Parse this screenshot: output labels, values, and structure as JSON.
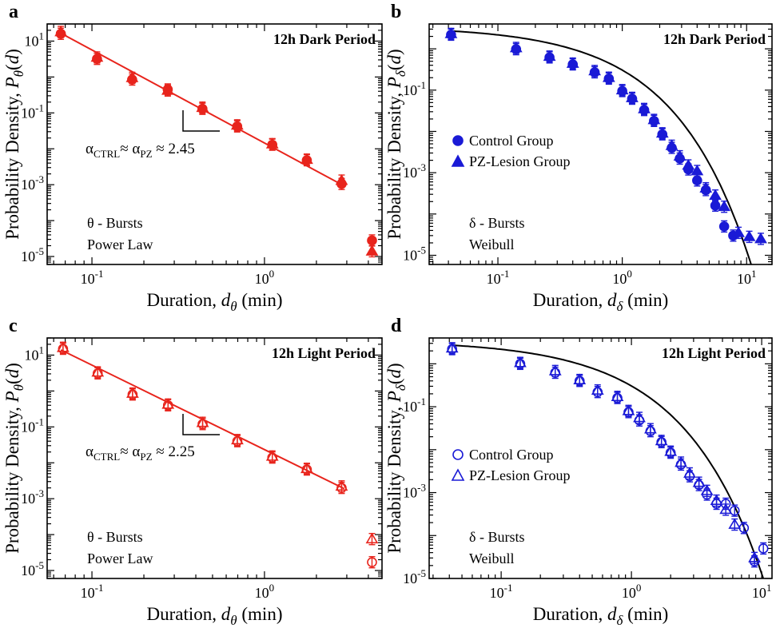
{
  "chart_data": [
    {
      "panel": "a",
      "type": "scatter",
      "title": "12h Dark Period",
      "xlabel": "Duration, dθ (min)",
      "ylabel": "Probability Density, Pθ(d)",
      "xscale": "log",
      "yscale": "log",
      "xlim": [
        0.055,
        4.8
      ],
      "ylim": [
        6e-06,
        30
      ],
      "xticks": [
        "10^-1",
        "10^0"
      ],
      "yticks": [
        "10^-5",
        "10^-3",
        "10^-1",
        "10^1"
      ],
      "color": "#e8241c",
      "filled": true,
      "series": [
        {
          "marker": "circle",
          "x": [
            0.066,
            0.107,
            0.171,
            0.275,
            0.437,
            0.695,
            1.11,
            1.76,
            2.8,
            4.2
          ],
          "y": [
            16,
            3.2,
            0.85,
            0.45,
            0.13,
            0.042,
            0.013,
            0.0048,
            0.00105,
            2.8e-05
          ]
        },
        {
          "marker": "triangle",
          "x": [
            0.066,
            0.107,
            0.171,
            0.275,
            0.437,
            0.695,
            1.11,
            1.76,
            2.8,
            4.2
          ],
          "y": [
            18,
            3.5,
            0.95,
            0.42,
            0.14,
            0.045,
            0.0135,
            0.005,
            0.0013,
            1.4e-05
          ]
        }
      ],
      "fit": {
        "label": "Power Law",
        "x": [
          0.064,
          2.9
        ],
        "y": [
          18,
          0.00092
        ]
      },
      "annotation": "αCTRL ≈ αPZ ≈ 2.45",
      "burst_label": "θ - Bursts"
    },
    {
      "panel": "b",
      "type": "scatter",
      "title": "12h Dark Period",
      "xlabel": "Duration, dδ (min)",
      "ylabel": "Probability Density, Pδ(d)",
      "xscale": "log",
      "yscale": "log",
      "xlim": [
        0.028,
        16
      ],
      "ylim": [
        6e-06,
        4
      ],
      "xticks": [
        "10^-1",
        "10^0",
        "10^1"
      ],
      "yticks": [
        "10^-5",
        "10^-3",
        "10^-1"
      ],
      "color": "#1a1ad6",
      "filled": true,
      "legend": [
        "Control Group",
        "PZ-Lesion Group"
      ],
      "legend_position": "middle-left",
      "series": [
        {
          "name": "Control Group",
          "marker": "circle",
          "x": [
            0.042,
            0.14,
            0.26,
            0.4,
            0.6,
            0.78,
            1.0,
            1.2,
            1.5,
            1.8,
            2.1,
            2.5,
            2.9,
            3.4,
            4.0,
            4.7,
            5.6,
            6.6,
            7.8
          ],
          "y": [
            2.2,
            0.98,
            0.62,
            0.42,
            0.27,
            0.19,
            0.095,
            0.062,
            0.033,
            0.018,
            0.0085,
            0.004,
            0.0022,
            0.0012,
            0.00065,
            0.00038,
            0.00016,
            5e-05,
            3e-05
          ]
        },
        {
          "name": "PZ-Lesion Group",
          "marker": "triangle",
          "x": [
            0.042,
            0.14,
            0.26,
            0.4,
            0.6,
            0.78,
            1.0,
            1.2,
            1.5,
            1.8,
            2.1,
            2.5,
            2.9,
            3.4,
            4.0,
            4.7,
            5.6,
            6.6,
            8.6,
            10.5,
            13
          ],
          "y": [
            2.3,
            1.05,
            0.65,
            0.44,
            0.29,
            0.2,
            0.1,
            0.065,
            0.035,
            0.019,
            0.009,
            0.0045,
            0.0025,
            0.0015,
            0.0011,
            0.00042,
            0.00028,
            0.00015,
            3.5e-05,
            2.8e-05,
            2.5e-05
          ]
        }
      ],
      "fit": {
        "label": "Weibull",
        "shape": "stretched-exponential"
      },
      "burst_label": "δ - Bursts"
    },
    {
      "panel": "c",
      "type": "scatter",
      "title": "12h Light Period",
      "xlabel": "Duration, dθ (min)",
      "ylabel": "Probability Density, Pθ(d)",
      "xscale": "log",
      "yscale": "log",
      "xlim": [
        0.055,
        4.8
      ],
      "ylim": [
        6e-06,
        30
      ],
      "xticks": [
        "10^-1",
        "10^0"
      ],
      "yticks": [
        "10^-5",
        "10^-3",
        "10^-1",
        "10^1"
      ],
      "color": "#e8241c",
      "filled": false,
      "series": [
        {
          "marker": "circle",
          "x": [
            0.068,
            0.108,
            0.172,
            0.276,
            0.438,
            0.696,
            1.11,
            1.76,
            2.8,
            4.2
          ],
          "y": [
            15,
            3.1,
            0.8,
            0.4,
            0.12,
            0.04,
            0.014,
            0.0065,
            0.002,
            1.7e-05
          ]
        },
        {
          "marker": "triangle",
          "x": [
            0.068,
            0.108,
            0.172,
            0.276,
            0.438,
            0.696,
            1.11,
            1.76,
            2.8,
            4.2
          ],
          "y": [
            16,
            3.3,
            0.85,
            0.42,
            0.13,
            0.043,
            0.015,
            0.0068,
            0.0022,
            7.5e-05
          ]
        }
      ],
      "fit": {
        "label": "Power Law",
        "x": [
          0.066,
          2.9
        ],
        "y": [
          14,
          0.0019
        ]
      },
      "annotation": "αCTRL ≈ αPZ ≈ 2.25",
      "burst_label": "θ - Bursts"
    },
    {
      "panel": "d",
      "type": "scatter",
      "title": "12h Light Period",
      "xlabel": "Duration, dδ (min)",
      "ylabel": "Probability Density, Pδ(d)",
      "xscale": "log",
      "yscale": "log",
      "xlim": [
        0.028,
        12
      ],
      "ylim": [
        1e-05,
        4
      ],
      "xticks": [
        "10^-1",
        "10^0",
        "10^1"
      ],
      "yticks": [
        "10^-5",
        "10^-3",
        "10^-1"
      ],
      "color": "#1a1ad6",
      "filled": false,
      "legend": [
        "Control Group",
        "PZ-Lesion Group"
      ],
      "legend_position": "middle-left",
      "series": [
        {
          "name": "Control Group",
          "marker": "circle",
          "x": [
            0.042,
            0.14,
            0.26,
            0.4,
            0.55,
            0.78,
            0.95,
            1.15,
            1.4,
            1.7,
            2.0,
            2.4,
            2.8,
            3.3,
            3.8,
            4.5,
            5.3,
            6.2,
            7.3,
            8.8,
            10.3
          ],
          "y": [
            2.2,
            1.0,
            0.62,
            0.4,
            0.22,
            0.16,
            0.075,
            0.048,
            0.027,
            0.015,
            0.0085,
            0.0045,
            0.0024,
            0.0015,
            0.0009,
            0.00055,
            0.00055,
            0.00038,
            0.00015,
            2.5e-05,
            5e-05
          ]
        },
        {
          "name": "PZ-Lesion Group",
          "marker": "triangle",
          "x": [
            0.042,
            0.14,
            0.26,
            0.4,
            0.55,
            0.78,
            0.95,
            1.15,
            1.4,
            1.7,
            2.0,
            2.4,
            2.8,
            3.3,
            3.8,
            4.5,
            5.3,
            6.2,
            8.8
          ],
          "y": [
            2.3,
            1.05,
            0.68,
            0.42,
            0.24,
            0.17,
            0.08,
            0.055,
            0.03,
            0.016,
            0.009,
            0.005,
            0.0028,
            0.0017,
            0.0011,
            0.00065,
            0.0004,
            0.00018,
            3e-05
          ]
        }
      ],
      "fit": {
        "label": "Weibull",
        "shape": "stretched-exponential"
      },
      "burst_label": "δ - Bursts"
    }
  ]
}
